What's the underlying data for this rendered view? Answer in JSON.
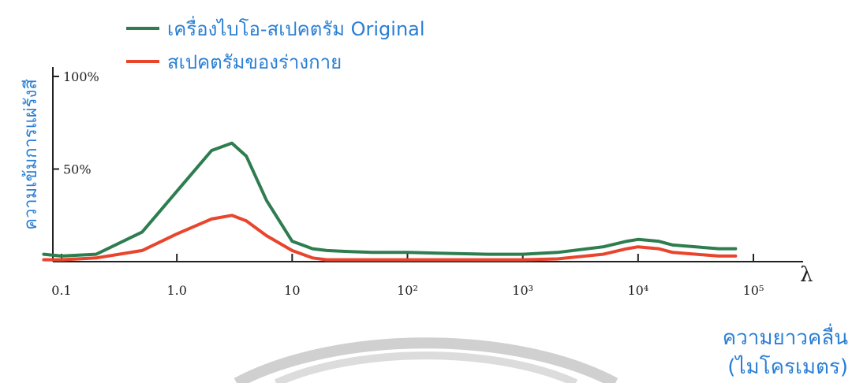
{
  "chart_data": {
    "type": "line",
    "title": "",
    "xlabel": [
      "ความยาวคลื่น",
      "(ไมโครเมตร)"
    ],
    "ylabel": "ความเข้มการแผ่รังสี",
    "x_scale": "log",
    "xlim": [
      0.1,
      100000
    ],
    "ylim": [
      0,
      100
    ],
    "x_axis_symbol": "λ",
    "x_tick_labels": [
      "0.1",
      "1.0",
      "10",
      "10²",
      "10³",
      "10⁴",
      "10⁵"
    ],
    "x_tick_values": [
      0.1,
      1,
      10,
      100,
      1000,
      10000,
      100000
    ],
    "y_tick_labels": [
      "50%",
      "100%"
    ],
    "y_tick_values": [
      50,
      100
    ],
    "grid": false,
    "legend": "top-left",
    "series": [
      {
        "name": "เครื่องไบโอ-สเปคตรัม Original",
        "color": "#2e7d4f",
        "x": [
          0.07,
          0.1,
          0.2,
          0.5,
          1,
          2,
          3,
          4,
          6,
          10,
          15,
          20,
          30,
          50,
          100,
          200,
          500,
          1000,
          2000,
          5000,
          8000,
          10000,
          15000,
          20000,
          50000,
          70000
        ],
        "y": [
          4,
          3,
          4,
          16,
          38,
          60,
          64,
          57,
          33,
          11,
          7,
          6,
          5.5,
          5,
          5,
          4.5,
          4,
          4,
          5,
          8,
          11,
          12,
          11,
          9,
          7,
          7
        ]
      },
      {
        "name": "สเปคตรัมของร่างกาย",
        "color": "#e8452c",
        "x": [
          0.07,
          0.1,
          0.2,
          0.5,
          1,
          2,
          3,
          4,
          6,
          10,
          15,
          20,
          30,
          50,
          100,
          200,
          500,
          1000,
          2000,
          5000,
          8000,
          10000,
          15000,
          20000,
          50000,
          70000
        ],
        "y": [
          1,
          1,
          2,
          6,
          15,
          23,
          25,
          22,
          14,
          6,
          2,
          1,
          1,
          1,
          1,
          1,
          1,
          1,
          1.5,
          4,
          7,
          8,
          7,
          5,
          3,
          3
        ]
      }
    ]
  }
}
